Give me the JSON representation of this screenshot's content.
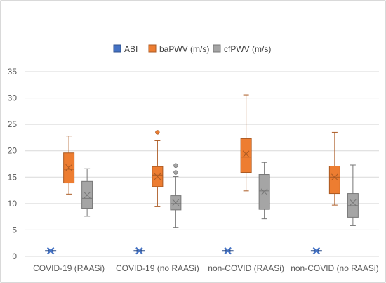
{
  "chart_data": {
    "type": "box",
    "title": "",
    "xlabel": "",
    "ylabel": "",
    "ylim": [
      0,
      35
    ],
    "yticks": [
      0,
      5,
      10,
      15,
      20,
      25,
      30,
      35
    ],
    "grid": true,
    "legend_position": "top",
    "categories": [
      "COVID-19 (RAASi)",
      "COVID-19 (no RAASi)",
      "non-COVID (RAASi)",
      "non-COVID (no RAASi)"
    ],
    "series": [
      {
        "name": "ABI",
        "color": "#4472C4",
        "boxes": [
          {
            "min": 0.9,
            "q1": 1.0,
            "median": 1.05,
            "q3": 1.1,
            "max": 1.2,
            "mean": 1.05,
            "outliers": []
          },
          {
            "min": 0.9,
            "q1": 1.0,
            "median": 1.05,
            "q3": 1.1,
            "max": 1.2,
            "mean": 1.05,
            "outliers": []
          },
          {
            "min": 0.9,
            "q1": 1.0,
            "median": 1.05,
            "q3": 1.1,
            "max": 1.2,
            "mean": 1.05,
            "outliers": []
          },
          {
            "min": 0.9,
            "q1": 1.0,
            "median": 1.05,
            "q3": 1.1,
            "max": 1.2,
            "mean": 1.05,
            "outliers": []
          }
        ]
      },
      {
        "name": "baPWV (m/s)",
        "color": "#ED7D31",
        "boxes": [
          {
            "min": 11.8,
            "q1": 13.9,
            "median": 16.5,
            "q3": 19.6,
            "max": 22.8,
            "mean": 16.8,
            "outliers": []
          },
          {
            "min": 9.4,
            "q1": 13.2,
            "median": 15.4,
            "q3": 17.0,
            "max": 21.9,
            "mean": 15.1,
            "outliers": [
              23.5
            ]
          },
          {
            "min": 12.4,
            "q1": 15.9,
            "median": 18.8,
            "q3": 22.3,
            "max": 30.6,
            "mean": 19.4,
            "outliers": []
          },
          {
            "min": 9.7,
            "q1": 11.9,
            "median": 15.0,
            "q3": 17.1,
            "max": 23.5,
            "mean": 15.0,
            "outliers": []
          }
        ]
      },
      {
        "name": "cfPWV (m/s)",
        "color": "#A5A5A5",
        "boxes": [
          {
            "min": 7.6,
            "q1": 9.1,
            "median": 11.0,
            "q3": 14.2,
            "max": 16.6,
            "mean": 11.6,
            "outliers": []
          },
          {
            "min": 5.5,
            "q1": 8.8,
            "median": 10.0,
            "q3": 11.5,
            "max": 15.1,
            "mean": 10.2,
            "outliers": [
              15.9,
              17.2
            ]
          },
          {
            "min": 7.1,
            "q1": 8.9,
            "median": 12.4,
            "q3": 15.5,
            "max": 17.8,
            "mean": 12.2,
            "outliers": []
          },
          {
            "min": 5.8,
            "q1": 7.4,
            "median": 9.6,
            "q3": 11.9,
            "max": 17.3,
            "mean": 10.2,
            "outliers": []
          }
        ]
      }
    ]
  }
}
